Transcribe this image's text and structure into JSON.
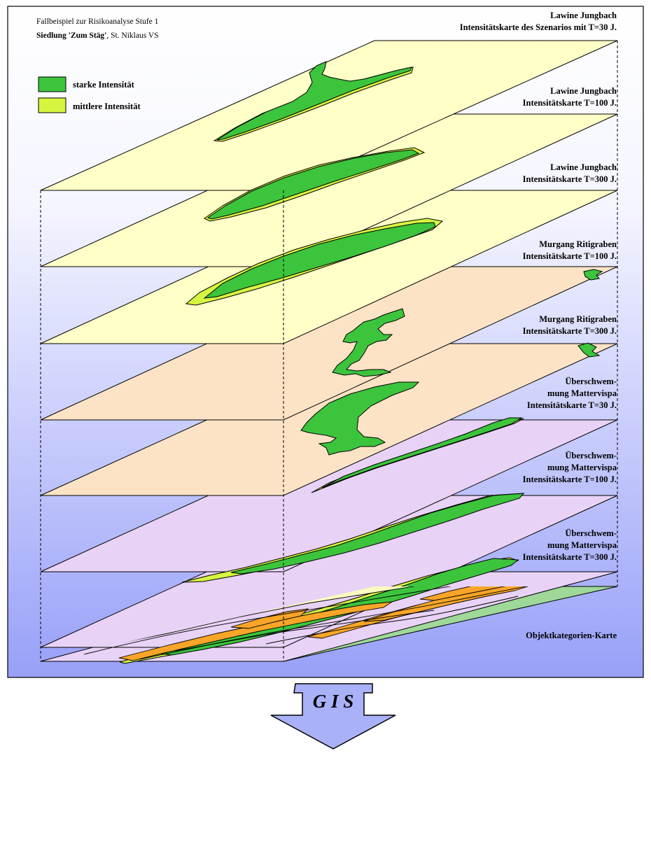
{
  "header": {
    "line1": "Fallbeispiel zur Risikoanalyse Stufe 1",
    "line2_bold": "Siedlung 'Zum Stäg'",
    "line2_rest": ", St. Niklaus VS"
  },
  "legend": [
    {
      "label": "starke Intensität",
      "color": "#3cc43c"
    },
    {
      "label": "mittlere Intensität",
      "color": "#d6f540"
    }
  ],
  "layers": [
    {
      "lines": [
        "Lawine Jungbach",
        "Intensitätskarte des Szenarios mit T=30 J."
      ],
      "fill": "#ffffc8"
    },
    {
      "lines": [
        "Lawine Jungbach",
        "Intensitätskarte T=100 J."
      ],
      "fill": "#ffffc8"
    },
    {
      "lines": [
        "Lawine Jungbach",
        "Intensitätskarte T=300 J."
      ],
      "fill": "#ffffc8"
    },
    {
      "lines": [
        "Murgang Ritigraben",
        "Intensitätskarte T=100 J."
      ],
      "fill": "#fde3c6"
    },
    {
      "lines": [
        "Murgang Ritigraben",
        "Intensitätskarte T=300 J."
      ],
      "fill": "#fde3c6"
    },
    {
      "lines": [
        "Überschwem-",
        "mung Mattervispa",
        "Intensitätskarte T=30 J."
      ],
      "fill": "#e8d2f6"
    },
    {
      "lines": [
        "Überschwem-",
        "mung Mattervispa",
        "Intensitätskarte T=100 J."
      ],
      "fill": "#e8d2f6"
    },
    {
      "lines": [
        "Überschwem-",
        "mung Mattervispa",
        "Intensitätskarte T=300 J."
      ],
      "fill": "#e8d2f6"
    },
    {
      "lines": [
        "Objektkategorien-Karte"
      ],
      "fill": "#9ed99a"
    }
  ],
  "arrow": {
    "label": "G I S",
    "color": "#a9b2f8"
  },
  "colors": {
    "strong": "#3cc43c",
    "medium": "#d6f540",
    "orange": "#f8a528",
    "cream": "#fbfbc0",
    "magenta": "#c000c0",
    "bg_top": "#ffffff",
    "bg_bottom": "#98a0f8"
  }
}
